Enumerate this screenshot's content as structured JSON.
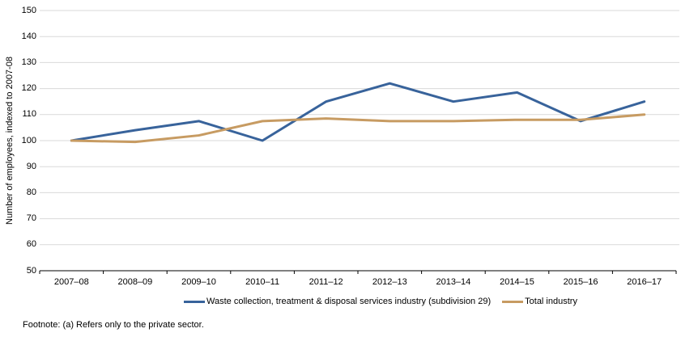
{
  "figure": {
    "footnote": "Footnote: (a) Refers only to the private sector."
  },
  "chart_data": {
    "type": "line",
    "title": "",
    "xlabel": "",
    "ylabel": "Number of employees, indexed to 2007-08",
    "ylim": [
      50,
      150
    ],
    "ytick_step": 10,
    "grid": true,
    "legend_position": "bottom",
    "categories": [
      "2007–08",
      "2008–09",
      "2009–10",
      "2010–11",
      "2011–12",
      "2012–13",
      "2013–14",
      "2014–15",
      "2015–16",
      "2016–17"
    ],
    "series": [
      {
        "name": "Waste collection, treatment & disposal services industry (subdivision 29)",
        "color": "#38639B",
        "values": [
          100,
          104,
          107.5,
          100,
          115,
          122,
          115,
          118.5,
          107.5,
          115
        ]
      },
      {
        "name": "Total industry",
        "color": "#C79B62",
        "values": [
          100,
          99.5,
          102,
          107.5,
          108.5,
          107.5,
          107.5,
          108,
          108,
          110
        ]
      }
    ],
    "colors": {
      "gridline": "#D9D9D9",
      "axis": "#000000",
      "text": "#000000",
      "background": "#FFFFFF"
    }
  }
}
